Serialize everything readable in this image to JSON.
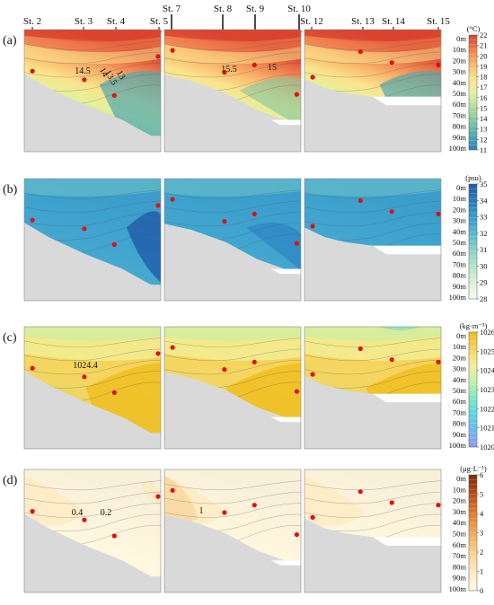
{
  "stations": {
    "top_labels": [
      "St. 2",
      "St. 3",
      "St. 4",
      "St. 5",
      "St. 7",
      "St. 8",
      "St. 9",
      "St. 10",
      "St. 12",
      "St. 13",
      "St. 14",
      "St. 15"
    ],
    "high_labels": [
      "St. 7",
      "St. 8",
      "St. 9",
      "St. 10"
    ]
  },
  "colors": {
    "land": "#d9d9d9",
    "sample_point": "#e01010",
    "contour": "#555555"
  },
  "chart_data": [
    {
      "type": "heatmap",
      "panel_label": "(a)",
      "variable": "temperature",
      "colorbar_title": "(°C)",
      "colorbar_range": [
        11,
        22
      ],
      "colorbar_ticks": [
        "22",
        "21",
        "20",
        "19",
        "18",
        "17",
        "16",
        "15",
        "14",
        "13",
        "12",
        "11"
      ],
      "depth_ticks": [
        "0m",
        "10m",
        "20m",
        "30m",
        "40m",
        "50m",
        "60m",
        "70m",
        "80m",
        "90m",
        "100m"
      ],
      "contour_labels": [
        "14.5",
        "14",
        "13.5",
        "13",
        "15.5",
        "15"
      ],
      "colorscale": [
        "#2a7fb6",
        "#4fa8b0",
        "#7fc6a4",
        "#b2dd9c",
        "#e3f29a",
        "#fbe38c",
        "#f9b56b",
        "#ef7b4c",
        "#d9442f"
      ]
    },
    {
      "type": "heatmap",
      "panel_label": "(b)",
      "variable": "salinity",
      "colorbar_title": "(psu)",
      "colorbar_range": [
        28,
        35
      ],
      "colorbar_ticks": [
        "35",
        "34",
        "33",
        "32",
        "31",
        "30",
        "29",
        "28"
      ],
      "depth_ticks": [
        "0m",
        "10m",
        "20m",
        "30m",
        "40m",
        "50m",
        "60m",
        "70m",
        "80m",
        "90m",
        "100m"
      ],
      "contour_labels": [],
      "colorscale": [
        "#f7fcf0",
        "#d6efd0",
        "#a8dcc5",
        "#6ec4c9",
        "#3fa4cf",
        "#2b7fbf",
        "#1f5ba8"
      ]
    },
    {
      "type": "heatmap",
      "panel_label": "(c)",
      "variable": "density",
      "colorbar_title": "(kg·m⁻³)",
      "colorbar_range": [
        1020,
        1026
      ],
      "colorbar_ticks": [
        "1026",
        "1025",
        "1024",
        "1023",
        "1022",
        "1021",
        "1020"
      ],
      "depth_ticks": [
        "0m",
        "10m",
        "20m",
        "30m",
        "40m",
        "50m",
        "60m",
        "70m",
        "80m",
        "90m",
        "100m"
      ],
      "contour_labels": [
        "1024.4"
      ],
      "colorscale": [
        "#8c9cf2",
        "#6fb6f0",
        "#5ed5e0",
        "#7fe6c0",
        "#c5f0a8",
        "#f3ef98",
        "#f6d35a",
        "#efbb18"
      ]
    },
    {
      "type": "heatmap",
      "panel_label": "(d)",
      "variable": "chlorophyll",
      "colorbar_title": "(μg·L⁻¹)",
      "colorbar_range": [
        0,
        6
      ],
      "colorbar_ticks": [
        "6",
        "5",
        "4",
        "3",
        "2",
        "1",
        "0"
      ],
      "depth_ticks": [
        "0m",
        "10m",
        "20m",
        "30m",
        "40m",
        "50m",
        "60m",
        "70m",
        "80m",
        "90m",
        "100m"
      ],
      "contour_labels": [
        "0.4",
        "0.2",
        "1"
      ],
      "colorscale": [
        "#fffbe6",
        "#fde9bd",
        "#f8cf8c",
        "#f0a95a",
        "#de7b2e",
        "#b84e14",
        "#7a2b06"
      ]
    }
  ]
}
